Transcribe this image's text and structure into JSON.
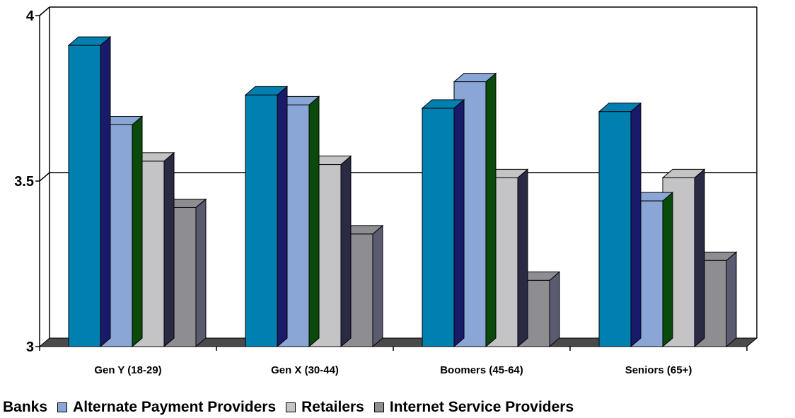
{
  "chart_data": {
    "type": "bar",
    "categories": [
      "Gen Y (18-29)",
      "Gen X (30-44)",
      "Boomers (45-64)",
      "Seniors (65+)"
    ],
    "series": [
      {
        "name": "Banks",
        "values": [
          3.91,
          3.76,
          3.72,
          3.71
        ],
        "color": "#0080b0"
      },
      {
        "name": "Alternate Payment Providers",
        "values": [
          3.67,
          3.73,
          3.8,
          3.44
        ],
        "color": "#8aa6d6"
      },
      {
        "name": "Retailers",
        "values": [
          3.56,
          3.55,
          3.51,
          3.51
        ],
        "color": "#c4c4c6"
      },
      {
        "name": "Internet Service Providers",
        "values": [
          3.42,
          3.34,
          3.2,
          3.26
        ],
        "color": "#8e8e92"
      }
    ],
    "ylim": [
      3,
      4
    ],
    "yticks": [
      "3",
      "3.5",
      "4"
    ],
    "grid": true,
    "legend_position": "bottom"
  }
}
